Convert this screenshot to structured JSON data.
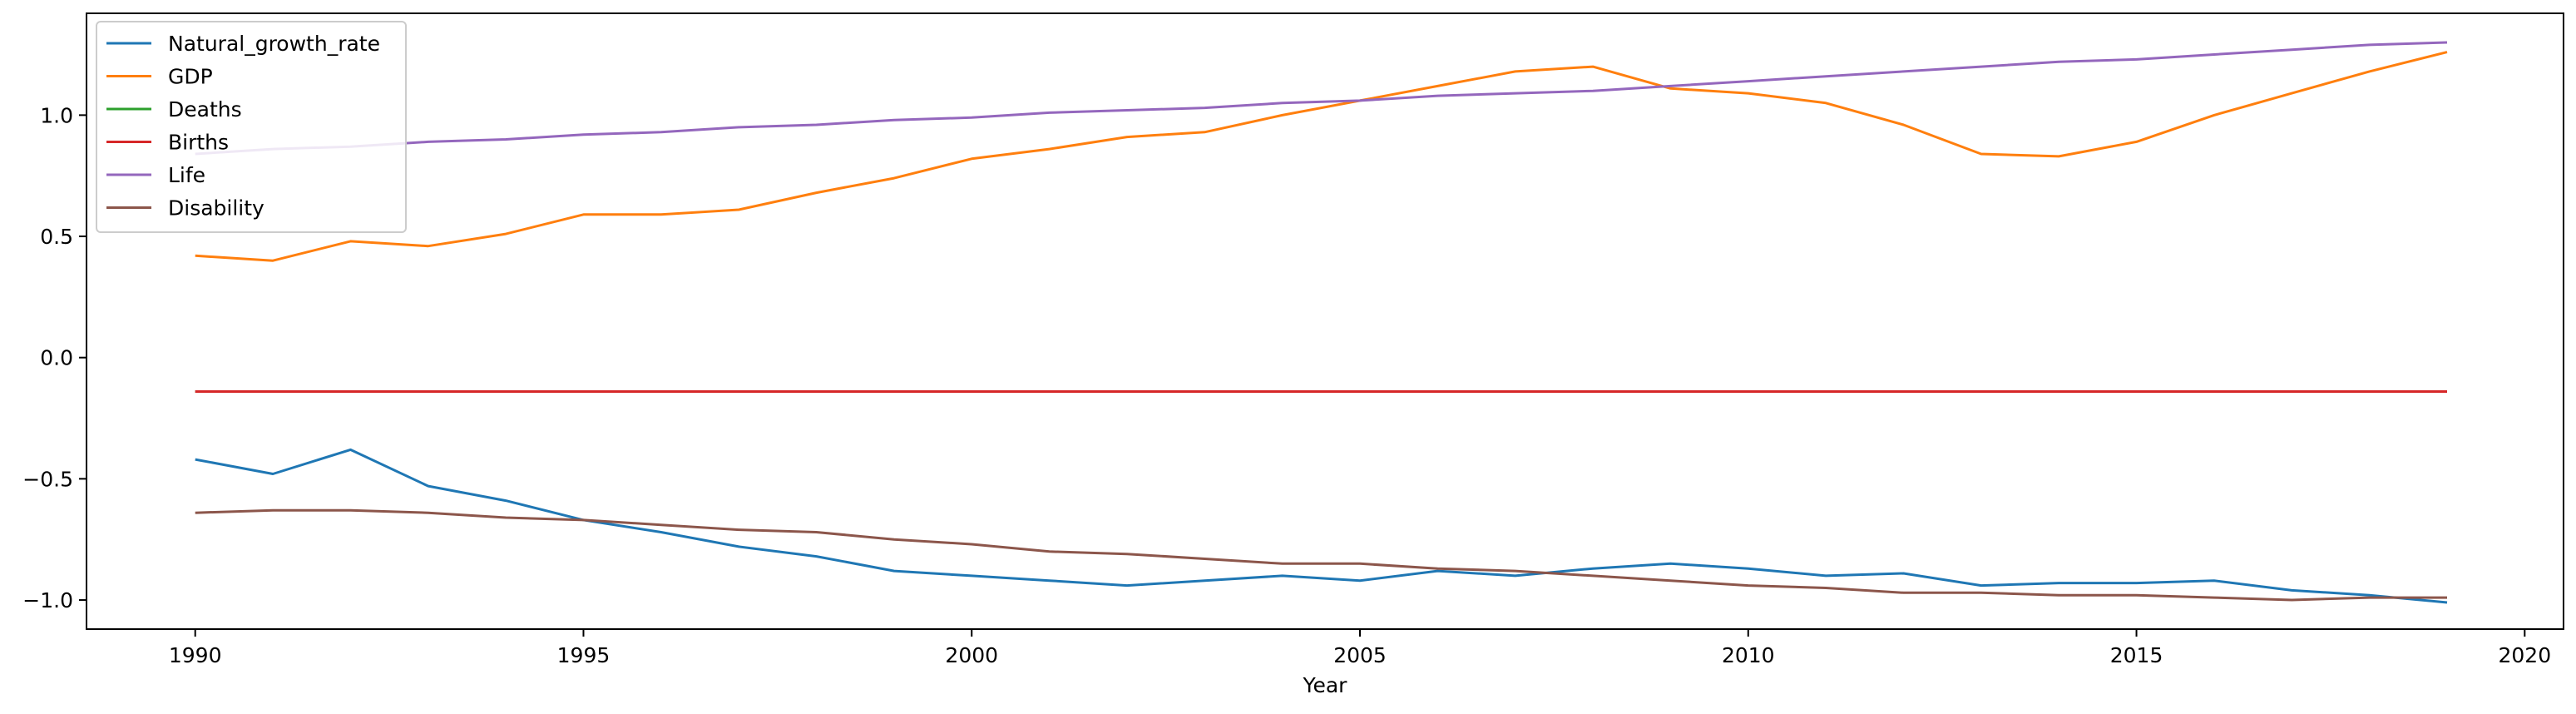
{
  "chart_data": {
    "type": "line",
    "title": "",
    "xlabel": "Year",
    "ylabel": "",
    "xlim": [
      1988.6,
      2020.5
    ],
    "ylim": [
      -1.12,
      1.42
    ],
    "xticks": [
      1990,
      1995,
      2000,
      2005,
      2010,
      2015,
      2020
    ],
    "yticks": [
      -1.0,
      -0.5,
      0.0,
      0.5,
      1.0
    ],
    "ytick_labels": [
      "−1.0",
      "−0.5",
      "0.0",
      "0.5",
      "1.0"
    ],
    "grid": false,
    "legend_position": "top-left",
    "x": [
      1990,
      1991,
      1992,
      1993,
      1994,
      1995,
      1996,
      1997,
      1998,
      1999,
      2000,
      2001,
      2002,
      2003,
      2004,
      2005,
      2006,
      2007,
      2008,
      2009,
      2010,
      2011,
      2012,
      2013,
      2014,
      2015,
      2016,
      2017,
      2018,
      2019
    ],
    "series": [
      {
        "name": "Natural_growth_rate",
        "color": "#1f77b4",
        "values": [
          -0.42,
          -0.48,
          -0.38,
          -0.53,
          -0.59,
          -0.67,
          -0.72,
          -0.78,
          -0.82,
          -0.88,
          -0.9,
          -0.92,
          -0.94,
          -0.92,
          -0.9,
          -0.92,
          -0.88,
          -0.9,
          -0.87,
          -0.85,
          -0.87,
          -0.9,
          -0.89,
          -0.94,
          -0.93,
          -0.93,
          -0.92,
          -0.96,
          -0.98,
          -1.01
        ]
      },
      {
        "name": "GDP",
        "color": "#ff7f0e",
        "values": [
          0.42,
          0.4,
          0.48,
          0.46,
          0.51,
          0.59,
          0.59,
          0.61,
          0.68,
          0.74,
          0.82,
          0.86,
          0.91,
          0.93,
          1.0,
          1.06,
          1.12,
          1.18,
          1.2,
          1.11,
          1.09,
          1.05,
          0.96,
          0.84,
          0.83,
          0.89,
          1.0,
          1.09,
          1.18,
          1.26
        ]
      },
      {
        "name": "Deaths",
        "color": "#2ca02c",
        "values": [
          -0.14,
          -0.14,
          -0.14,
          -0.14,
          -0.14,
          -0.14,
          -0.14,
          -0.14,
          -0.14,
          -0.14,
          -0.14,
          -0.14,
          -0.14,
          -0.14,
          -0.14,
          -0.14,
          -0.14,
          -0.14,
          -0.14,
          -0.14,
          -0.14,
          -0.14,
          -0.14,
          -0.14,
          -0.14,
          -0.14,
          -0.14,
          -0.14,
          -0.14,
          -0.14
        ]
      },
      {
        "name": "Births",
        "color": "#d62728",
        "values": [
          -0.14,
          -0.14,
          -0.14,
          -0.14,
          -0.14,
          -0.14,
          -0.14,
          -0.14,
          -0.14,
          -0.14,
          -0.14,
          -0.14,
          -0.14,
          -0.14,
          -0.14,
          -0.14,
          -0.14,
          -0.14,
          -0.14,
          -0.14,
          -0.14,
          -0.14,
          -0.14,
          -0.14,
          -0.14,
          -0.14,
          -0.14,
          -0.14,
          -0.14,
          -0.14
        ]
      },
      {
        "name": "Life",
        "color": "#9467bd",
        "values": [
          0.84,
          0.86,
          0.87,
          0.89,
          0.9,
          0.92,
          0.93,
          0.95,
          0.96,
          0.98,
          0.99,
          1.01,
          1.02,
          1.03,
          1.05,
          1.06,
          1.08,
          1.09,
          1.1,
          1.12,
          1.14,
          1.16,
          1.18,
          1.2,
          1.22,
          1.23,
          1.25,
          1.27,
          1.29,
          1.3
        ]
      },
      {
        "name": "Disability",
        "color": "#8c564b",
        "values": [
          -0.64,
          -0.63,
          -0.63,
          -0.64,
          -0.66,
          -0.67,
          -0.69,
          -0.71,
          -0.72,
          -0.75,
          -0.77,
          -0.8,
          -0.81,
          -0.83,
          -0.85,
          -0.85,
          -0.87,
          -0.88,
          -0.9,
          -0.92,
          -0.94,
          -0.95,
          -0.97,
          -0.97,
          -0.98,
          -0.98,
          -0.99,
          -1.0,
          -0.99,
          -0.99
        ]
      }
    ]
  }
}
